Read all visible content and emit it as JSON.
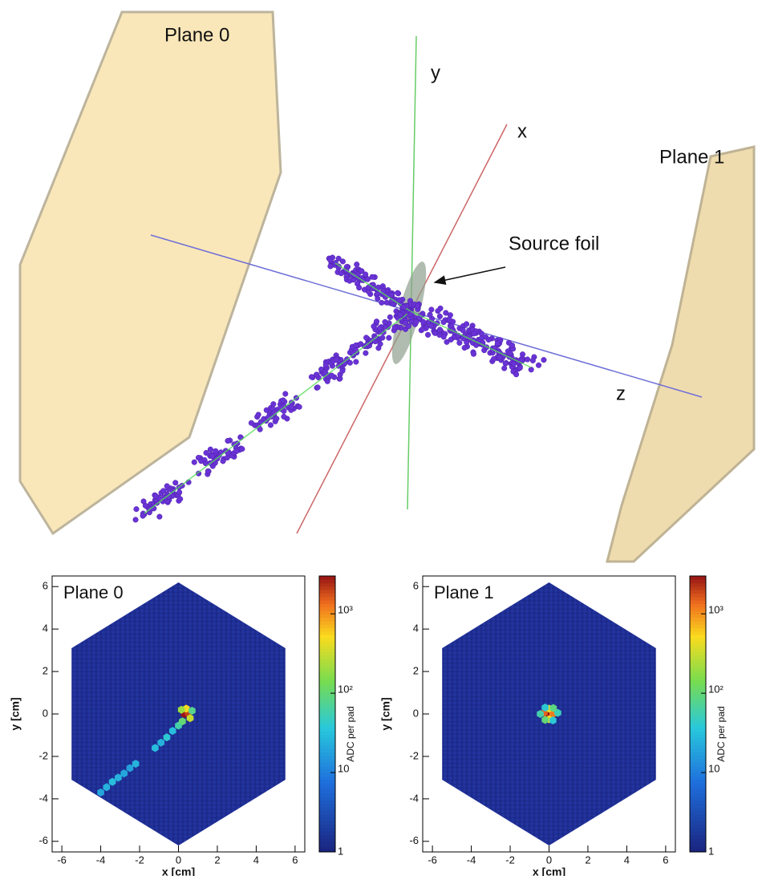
{
  "chart_data": [
    {
      "type": "event-display",
      "plane0": "Plane 0",
      "plane1": "Plane 1",
      "axis_x": "x",
      "axis_y": "y",
      "axis_z": "z",
      "source": "Source foil"
    },
    {
      "type": "heatmap",
      "title": "Plane 0",
      "x_label": "x [cm]",
      "y_label": "y [cm]",
      "colorbar_label": "ADC per pad",
      "xlim": [
        -6.5,
        6.5
      ],
      "ylim": [
        -6.5,
        6.5
      ],
      "xticks": [
        -6,
        -4,
        -2,
        0,
        2,
        4,
        6
      ],
      "yticks": [
        -6,
        -4,
        -2,
        0,
        2,
        4,
        6
      ],
      "zlim": [
        1,
        3000
      ],
      "log_z": true,
      "zticks": [
        1,
        10,
        {
          "value": 100,
          "label": "10²"
        },
        {
          "value": 1000,
          "label": "10³"
        }
      ],
      "hits": {
        "x": [
          -4,
          -3.7,
          -3.4,
          -3.1,
          -2.8,
          -2.5,
          -2.2,
          -1.2,
          -0.9,
          -0.6,
          -0.3,
          0,
          0.2,
          0.3,
          0.5,
          0.4,
          0.6,
          0.15,
          0.7
        ],
        "y": [
          -3.7,
          -3.45,
          -3.2,
          -3.0,
          -2.8,
          -2.55,
          -2.35,
          -1.6,
          -1.35,
          -1.1,
          -0.8,
          -0.55,
          -0.35,
          0,
          0.05,
          0.25,
          -0.2,
          0.2,
          0.15
        ],
        "values": [
          20,
          25,
          30,
          25,
          20,
          18,
          25,
          30,
          25,
          40,
          30,
          60,
          100,
          3000,
          2000,
          500,
          300,
          200,
          80
        ]
      }
    },
    {
      "type": "heatmap",
      "title": "Plane 1",
      "x_label": "x [cm]",
      "y_label": "y [cm]",
      "colorbar_label": "ADC per pad",
      "xlim": [
        -6.5,
        6.5
      ],
      "ylim": [
        -6.5,
        6.5
      ],
      "xticks": [
        -6,
        -4,
        -2,
        0,
        2,
        4,
        6
      ],
      "yticks": [
        -6,
        -4,
        -2,
        0,
        2,
        4,
        6
      ],
      "zlim": [
        1,
        3000
      ],
      "log_z": true,
      "zticks": [
        1,
        10,
        {
          "value": 100,
          "label": "10²"
        },
        {
          "value": 1000,
          "label": "10³"
        }
      ],
      "hits": {
        "x": [
          0,
          -0.25,
          0.2,
          0,
          0,
          -0.45,
          0.45,
          -0.2,
          0.2,
          -0.2,
          0.22
        ],
        "y": [
          0,
          0.05,
          0,
          0.25,
          -0.25,
          0,
          0.05,
          0.3,
          -0.3,
          -0.28,
          0.28
        ],
        "values": [
          3000,
          1500,
          1200,
          400,
          500,
          60,
          50,
          40,
          40,
          100,
          90
        ]
      }
    }
  ]
}
